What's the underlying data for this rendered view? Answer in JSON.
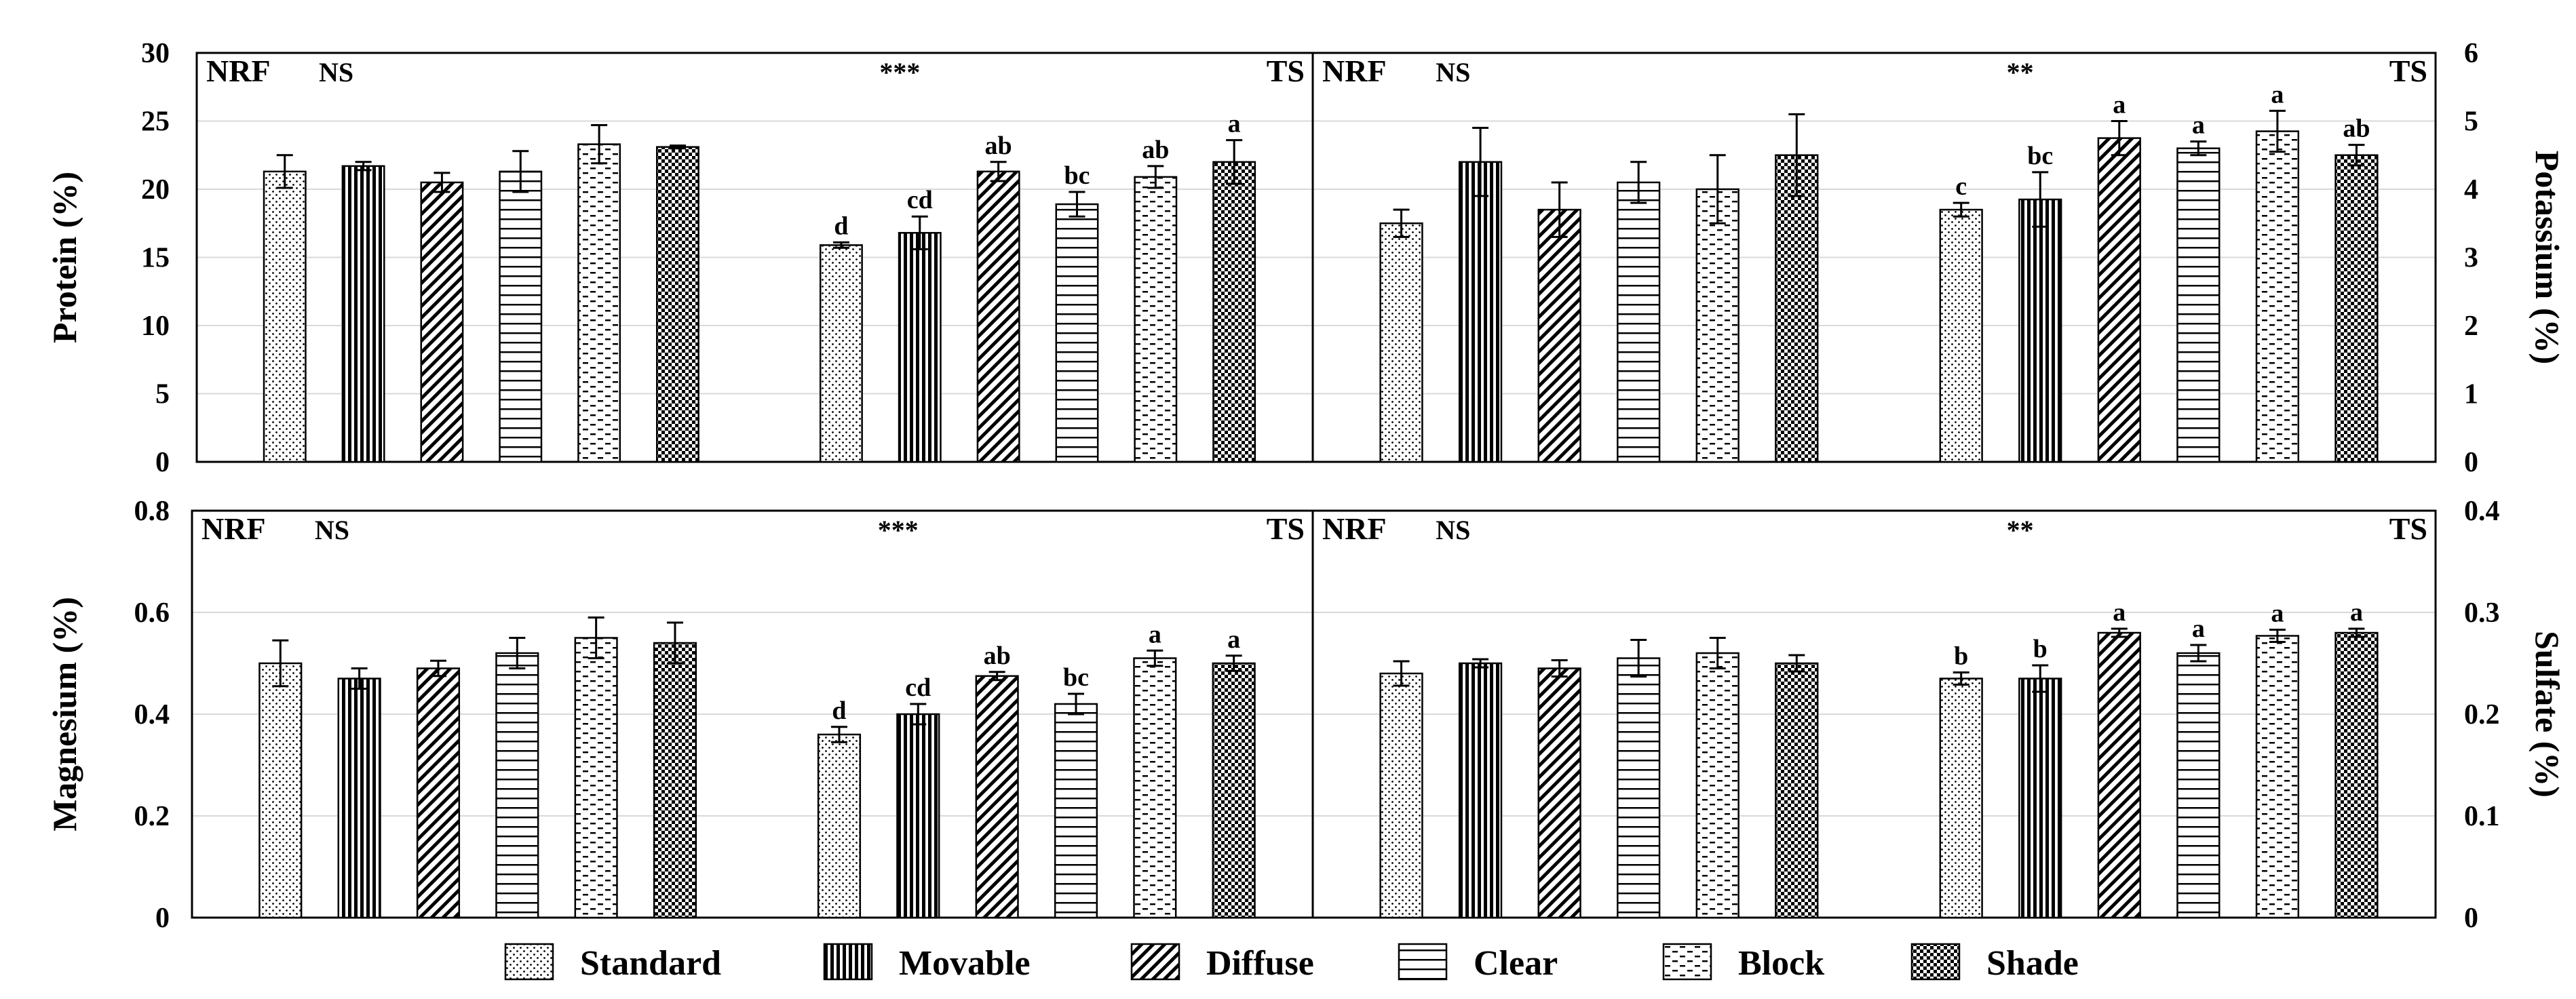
{
  "figure": {
    "treatments": [
      "Standard",
      "Movable",
      "Diffuse",
      "Clear",
      "Block",
      "Shade"
    ],
    "groups": [
      "NRF",
      "TS"
    ],
    "legend": {
      "items": [
        {
          "label": "Standard",
          "pattern": "dots"
        },
        {
          "label": "Movable",
          "pattern": "vlines"
        },
        {
          "label": "Diffuse",
          "pattern": "diag"
        },
        {
          "label": "Clear",
          "pattern": "hlines"
        },
        {
          "label": "Block",
          "pattern": "dashes"
        },
        {
          "label": "Shade",
          "pattern": "check"
        }
      ]
    }
  },
  "chart_data": [
    {
      "type": "bar",
      "title": "Protein",
      "ylabel": "Protein (%)",
      "yaxis_side": "left",
      "ylim": [
        0,
        30
      ],
      "yticks": [
        "0",
        "5",
        "10",
        "15",
        "20",
        "25",
        "30"
      ],
      "grid": true,
      "categories": [
        "Standard",
        "Movable",
        "Diffuse",
        "Clear",
        "Block",
        "Shade"
      ],
      "groups": [
        {
          "name": "NRF",
          "label": "NRF",
          "significance": "NS",
          "values": [
            21.3,
            21.7,
            20.5,
            21.3,
            23.3,
            23.1
          ],
          "errors": [
            1.2,
            0.3,
            0.7,
            1.5,
            1.4,
            0.1
          ],
          "letters": [
            "",
            "",
            "",
            "",
            "",
            ""
          ]
        },
        {
          "name": "TS",
          "label": "TS",
          "significance": "***",
          "values": [
            15.9,
            16.8,
            21.3,
            18.9,
            20.9,
            22.0
          ],
          "errors": [
            0.2,
            1.2,
            0.7,
            0.9,
            0.8,
            1.6
          ],
          "letters": [
            "d",
            "cd",
            "ab",
            "bc",
            "ab",
            "a"
          ]
        }
      ]
    },
    {
      "type": "bar",
      "title": "Potassium",
      "ylabel": "Potassium (%)",
      "yaxis_side": "right",
      "ylim": [
        0,
        6
      ],
      "yticks": [
        "0",
        "1",
        "2",
        "3",
        "4",
        "5",
        "6"
      ],
      "grid": true,
      "categories": [
        "Standard",
        "Movable",
        "Diffuse",
        "Clear",
        "Block",
        "Shade"
      ],
      "groups": [
        {
          "name": "NRF",
          "label": "NRF",
          "significance": "NS",
          "values": [
            3.5,
            4.4,
            3.7,
            4.1,
            4.0,
            4.5
          ],
          "errors": [
            0.2,
            0.5,
            0.4,
            0.3,
            0.5,
            0.6
          ],
          "letters": [
            "",
            "",
            "",
            "",
            "",
            ""
          ]
        },
        {
          "name": "TS",
          "label": "TS",
          "significance": "**",
          "values": [
            3.7,
            3.85,
            4.75,
            4.6,
            4.85,
            4.5
          ],
          "errors": [
            0.1,
            0.4,
            0.25,
            0.1,
            0.3,
            0.15
          ],
          "letters": [
            "c",
            "bc",
            "a",
            "a",
            "a",
            "ab"
          ]
        }
      ]
    },
    {
      "type": "bar",
      "title": "Magnesium",
      "ylabel": "Magnesium (%)",
      "yaxis_side": "left",
      "ylim": [
        0,
        0.8
      ],
      "yticks": [
        "0",
        "0.2",
        "0.4",
        "0.6",
        "0.8"
      ],
      "grid": true,
      "categories": [
        "Standard",
        "Movable",
        "Diffuse",
        "Clear",
        "Block",
        "Shade"
      ],
      "groups": [
        {
          "name": "NRF",
          "label": "NRF",
          "significance": "NS",
          "values": [
            0.5,
            0.47,
            0.49,
            0.52,
            0.55,
            0.54
          ],
          "errors": [
            0.045,
            0.02,
            0.015,
            0.03,
            0.04,
            0.04
          ],
          "letters": [
            "",
            "",
            "",
            "",
            "",
            ""
          ]
        },
        {
          "name": "TS",
          "label": "TS",
          "significance": "***",
          "values": [
            0.36,
            0.4,
            0.475,
            0.42,
            0.51,
            0.5
          ],
          "errors": [
            0.015,
            0.02,
            0.008,
            0.02,
            0.015,
            0.015
          ],
          "letters": [
            "d",
            "cd",
            "ab",
            "bc",
            "a",
            "a"
          ]
        }
      ]
    },
    {
      "type": "bar",
      "title": "Sulfate",
      "ylabel": "Sulfate (%)",
      "yaxis_side": "right",
      "ylim": [
        0,
        0.4
      ],
      "yticks": [
        "0",
        "0.1",
        "0.2",
        "0.3",
        "0.4"
      ],
      "grid": true,
      "categories": [
        "Standard",
        "Movable",
        "Diffuse",
        "Clear",
        "Block",
        "Shade"
      ],
      "groups": [
        {
          "name": "NRF",
          "label": "NRF",
          "significance": "NS",
          "values": [
            0.24,
            0.25,
            0.245,
            0.255,
            0.26,
            0.25
          ],
          "errors": [
            0.012,
            0.004,
            0.008,
            0.018,
            0.015,
            0.008
          ],
          "letters": [
            "",
            "",
            "",
            "",
            "",
            ""
          ]
        },
        {
          "name": "TS",
          "label": "TS",
          "significance": "**",
          "values": [
            0.235,
            0.235,
            0.28,
            0.26,
            0.277,
            0.28
          ],
          "errors": [
            0.006,
            0.013,
            0.004,
            0.008,
            0.006,
            0.004
          ],
          "letters": [
            "b",
            "b",
            "a",
            "a",
            "a",
            "a"
          ]
        }
      ]
    }
  ]
}
